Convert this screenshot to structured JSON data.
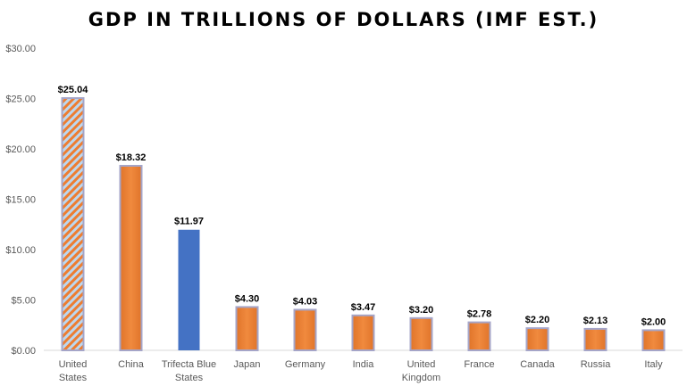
{
  "chart_data": {
    "type": "bar",
    "title": "GDP IN TRILLIONS OF DOLLARS (IMF EST.)",
    "xlabel": "",
    "ylabel": "",
    "ylim": [
      0,
      30
    ],
    "yticks": [
      "$0.00",
      "$5.00",
      "$10.00",
      "$15.00",
      "$20.00",
      "$25.00",
      "$30.00"
    ],
    "categories": [
      [
        "United",
        "States"
      ],
      [
        "China"
      ],
      [
        "Trifecta Blue",
        "States"
      ],
      [
        "Japan"
      ],
      [
        "Germany"
      ],
      [
        "India"
      ],
      [
        "United",
        "Kingdom"
      ],
      [
        "France"
      ],
      [
        "Canada"
      ],
      [
        "Russia"
      ],
      [
        "Italy"
      ]
    ],
    "values": [
      25.04,
      18.32,
      11.97,
      4.3,
      4.03,
      3.47,
      3.2,
      2.78,
      2.2,
      2.13,
      2.0
    ],
    "value_labels": [
      "$25.04",
      "$18.32",
      "$11.97",
      "$4.30",
      "$4.03",
      "$3.47",
      "$3.20",
      "$2.78",
      "$2.20",
      "$2.13",
      "$2.00"
    ],
    "bar_styles": [
      "hatched",
      "solid",
      "blue",
      "solid",
      "solid",
      "solid",
      "solid",
      "solid",
      "solid",
      "solid",
      "solid"
    ],
    "grid": false,
    "legend": "none",
    "colors": {
      "orange": "#ED7D31",
      "bar_border": "#A5A5C8",
      "blue": "#4472C4",
      "hatch_line": "#9DC3E6",
      "axis": "#D9D9D9"
    }
  }
}
